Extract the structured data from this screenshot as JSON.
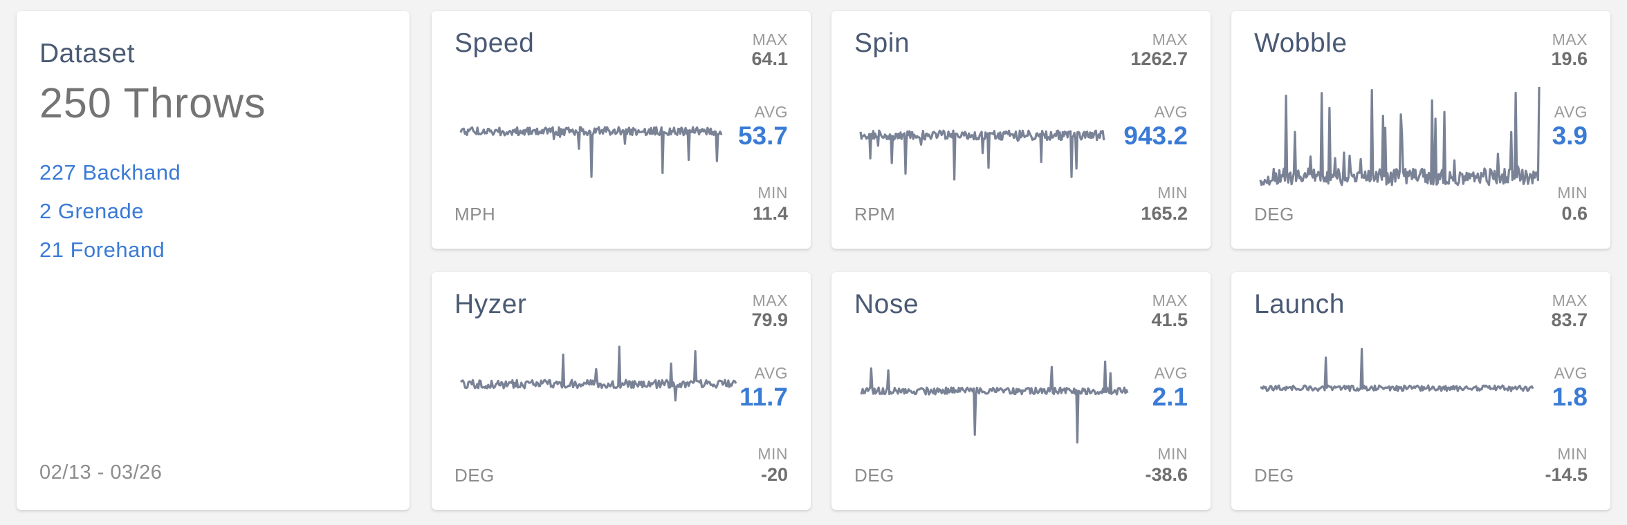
{
  "dataset": {
    "title": "Dataset",
    "count": "250 Throws",
    "types": [
      {
        "label": "227 Backhand"
      },
      {
        "label": "2 Grenade"
      },
      {
        "label": "21 Forehand"
      }
    ],
    "date_range": "02/13 - 03/26"
  },
  "labels": {
    "max": "MAX",
    "avg": "AVG",
    "min": "MIN"
  },
  "colors": {
    "sparkline": "#7a8296",
    "accent": "#3a7bd5",
    "title": "#4a5a74"
  },
  "metrics": [
    {
      "title": "Speed",
      "unit": "MPH",
      "max": "64.1",
      "avg": "53.7",
      "min": "11.4"
    },
    {
      "title": "Spin",
      "unit": "RPM",
      "max": "1262.7",
      "avg": "943.2",
      "min": "165.2"
    },
    {
      "title": "Wobble",
      "unit": "DEG",
      "max": "19.6",
      "avg": "3.9",
      "min": "0.6"
    },
    {
      "title": "Hyzer",
      "unit": "DEG",
      "max": "79.9",
      "avg": "11.7",
      "min": "-20"
    },
    {
      "title": "Nose",
      "unit": "DEG",
      "max": "41.5",
      "avg": "2.1",
      "min": "-38.6"
    },
    {
      "title": "Launch",
      "unit": "DEG",
      "max": "83.7",
      "avg": "1.8",
      "min": "-14.5"
    }
  ]
}
